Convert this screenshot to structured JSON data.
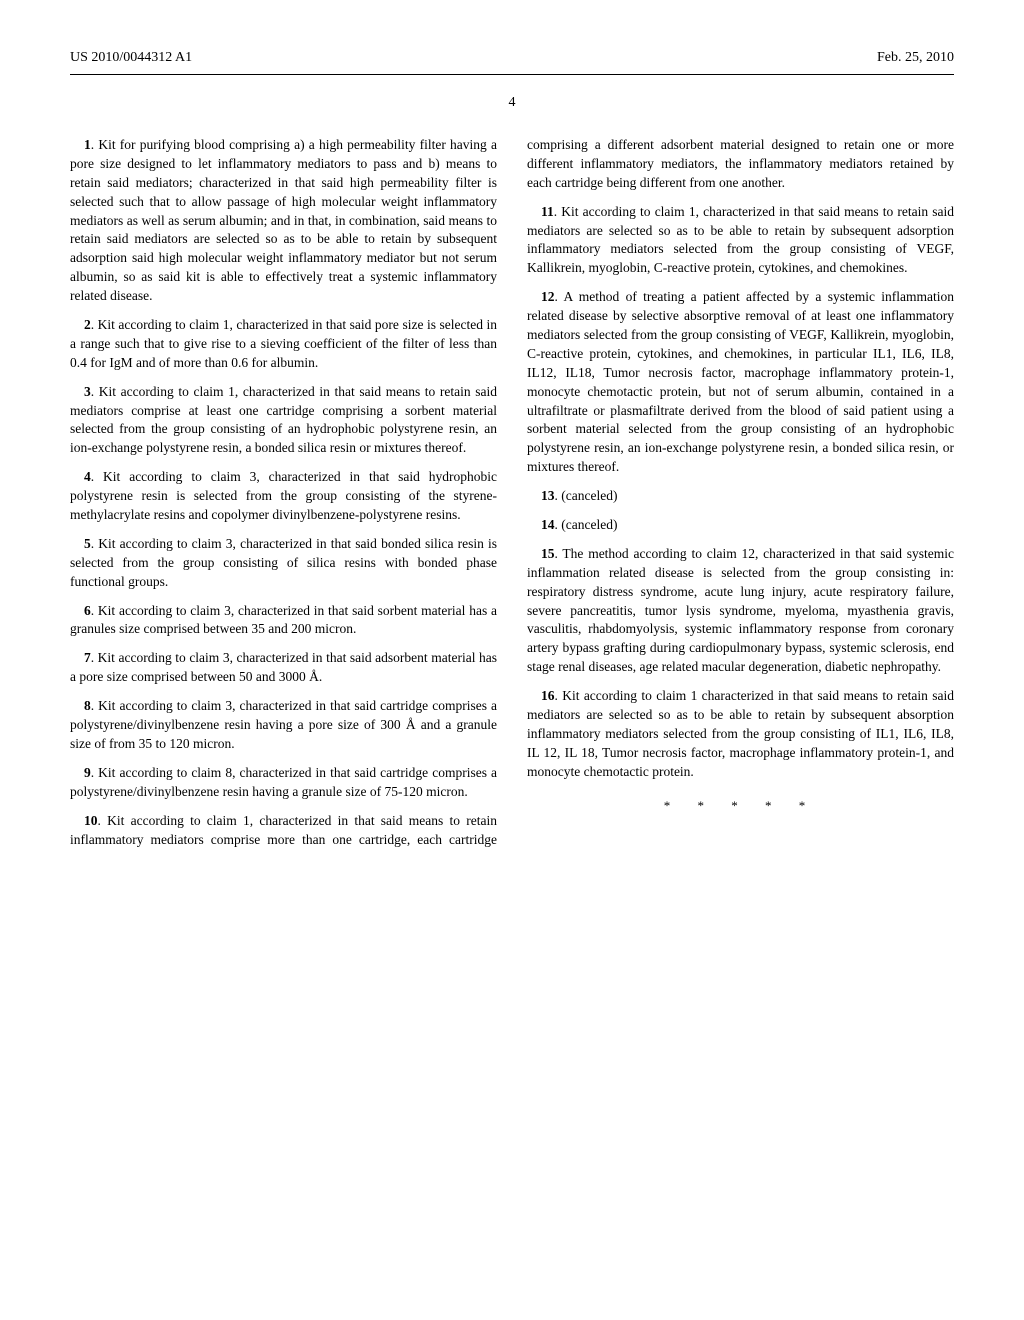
{
  "header": {
    "pub_number": "US 2010/0044312 A1",
    "pub_date": "Feb. 25, 2010"
  },
  "page_number": "4",
  "claims": [
    {
      "num": "1",
      "text": ". Kit for purifying blood comprising a) a high permeability filter having a pore size designed to let inflammatory mediators to pass and b) means to retain said mediators; characterized in that said high permeability filter is selected such that to allow passage of high molecular weight inflammatory mediators as well as serum albumin; and in that, in combination, said means to retain said mediators are selected so as to be able to retain by subsequent adsorption said high molecular weight inflammatory mediator but not serum albumin, so as said kit is able to effectively treat a systemic inflammatory related disease."
    },
    {
      "num": "2",
      "text": ". Kit according to claim 1, characterized in that said pore size is selected in a range such that to give rise to a sieving coefficient of the filter of less than 0.4 for IgM and of more than 0.6 for albumin."
    },
    {
      "num": "3",
      "text": ". Kit according to claim 1, characterized in that said means to retain said mediators comprise at least one cartridge comprising a sorbent material selected from the group consisting of an hydrophobic polystyrene resin, an ion-exchange polystyrene resin, a bonded silica resin or mixtures thereof."
    },
    {
      "num": "4",
      "text": ". Kit according to claim 3, characterized in that said hydrophobic polystyrene resin is selected from the group consisting of the styrene-methylacrylate resins and copolymer divinylbenzene-polystyrene resins."
    },
    {
      "num": "5",
      "text": ". Kit according to claim 3, characterized in that said bonded silica resin is selected from the group consisting of silica resins with bonded phase functional groups."
    },
    {
      "num": "6",
      "text": ". Kit according to claim 3, characterized in that said sorbent material has a granules size comprised between 35 and 200 micron."
    },
    {
      "num": "7",
      "text": ". Kit according to claim 3, characterized in that said adsorbent material has a pore size comprised between 50 and 3000 Å."
    },
    {
      "num": "8",
      "text": ". Kit according to claim 3, characterized in that said cartridge comprises a polystyrene/divinylbenzene resin having a pore size of 300 Å and a granule size of from 35 to 120 micron."
    },
    {
      "num": "9",
      "text": ". Kit according to claim 8, characterized in that said cartridge comprises a polystyrene/divinylbenzene resin having a granule size of 75-120 micron."
    },
    {
      "num": "10",
      "text": ". Kit according to claim 1, characterized in that said means to retain inflammatory mediators comprise more than one cartridge, each cartridge comprising a different adsorbent material designed to retain one or more different inflammatory mediators, the inflammatory mediators retained by each cartridge being different from one another."
    },
    {
      "num": "11",
      "text": ". Kit according to claim 1, characterized in that said means to retain said mediators are selected so as to be able to retain by subsequent adsorption inflammatory mediators selected from the group consisting of VEGF, Kallikrein, myoglobin, C-reactive protein, cytokines, and chemokines."
    },
    {
      "num": "12",
      "text": ". A method of treating a patient affected by a systemic inflammation related disease by selective absorptive removal of at least one inflammatory mediators selected from the group consisting of VEGF, Kallikrein, myoglobin, C-reactive protein, cytokines, and chemokines, in particular IL1, IL6, IL8, IL12, IL18, Tumor necrosis factor, macrophage inflammatory protein-1, monocyte chemotactic protein, but not of serum albumin, contained in a ultrafiltrate or plasmafiltrate derived from the blood of said patient using a sorbent material selected from the group consisting of an hydrophobic polystyrene resin, an ion-exchange polystyrene resin, a bonded silica resin, or mixtures thereof."
    },
    {
      "num": "13",
      "text": ". (canceled)"
    },
    {
      "num": "14",
      "text": ". (canceled)"
    },
    {
      "num": "15",
      "text": ". The method according to claim 12, characterized in that said systemic inflammation related disease is selected from the group consisting in: respiratory distress syndrome, acute lung injury, acute respiratory failure, severe pancreatitis, tumor lysis syndrome, myeloma, myasthenia gravis, vasculitis, rhabdomyolysis, systemic inflammatory response from coronary artery bypass grafting during cardiopulmonary bypass, systemic sclerosis, end stage renal diseases, age related macular degeneration, diabetic nephropathy."
    },
    {
      "num": "16",
      "text": ". Kit according to claim 1 characterized in that said means to retain said mediators are selected so as to be able to retain by subsequent absorption inflammatory mediators selected from the group consisting of IL1, IL6, IL8, IL 12, IL 18, Tumor necrosis factor, macrophage inflammatory protein-1, and monocyte chemotactic protein."
    }
  ],
  "end_marks": "* * * * *"
}
